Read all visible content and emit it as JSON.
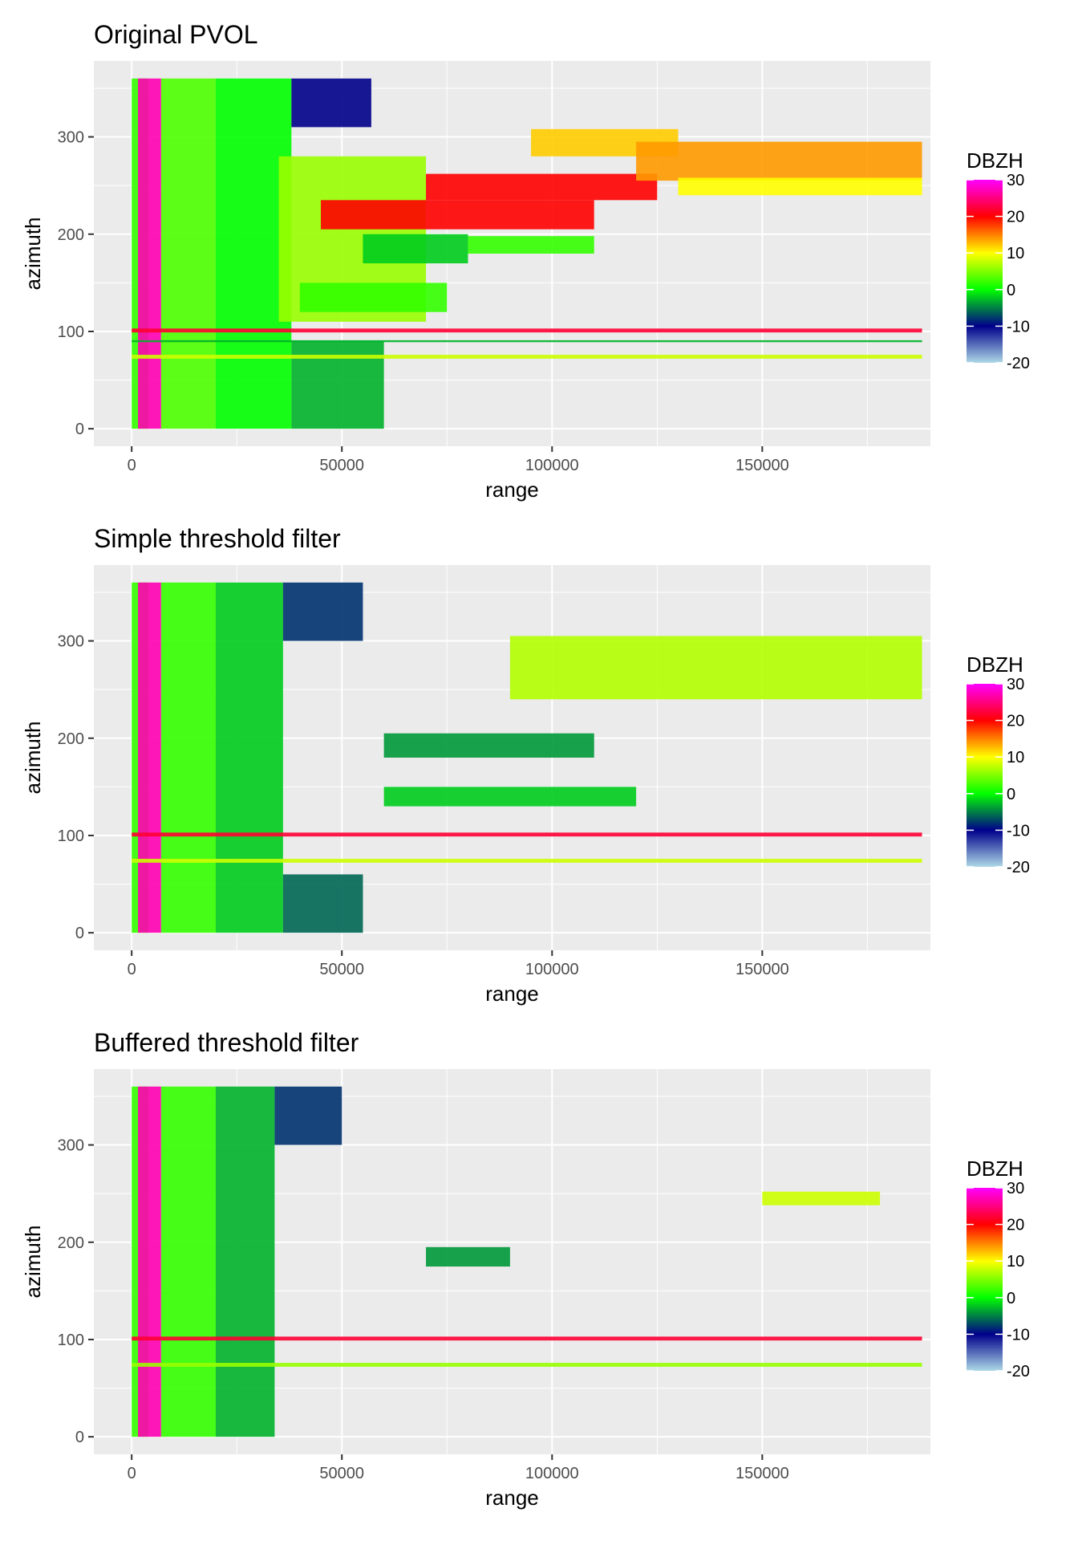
{
  "colors": {
    "panel_bg": "#ebebeb",
    "grid": "#ffffff",
    "tick_text": "#4d4d4d",
    "colorbar_stops": [
      {
        "value": -20,
        "color": "#add8e6"
      },
      {
        "value": -10,
        "color": "#00008b"
      },
      {
        "value": 0,
        "color": "#00ff00"
      },
      {
        "value": 10,
        "color": "#ffff00"
      },
      {
        "value": 20,
        "color": "#ff0000"
      },
      {
        "value": 30,
        "color": "#ff00ff"
      }
    ]
  },
  "chart_data": [
    {
      "type": "heatmap",
      "title": "Original PVOL",
      "xlabel": "range",
      "ylabel": "azimuth",
      "xlim": [
        -9000,
        190000
      ],
      "ylim": [
        -18,
        378
      ],
      "x_ticks": [
        0,
        50000,
        100000,
        150000
      ],
      "y_ticks": [
        0,
        100,
        200,
        300
      ],
      "legend": {
        "title": "DBZH",
        "position": "right",
        "ticks": [
          30,
          20,
          10,
          0,
          -10,
          -20
        ]
      },
      "grid": true,
      "regions": [
        {
          "x": [
            0,
            4000
          ],
          "y": [
            0,
            360
          ],
          "dbzh": 2
        },
        {
          "x": [
            1500,
            7000
          ],
          "y": [
            0,
            360
          ],
          "dbzh": 27
        },
        {
          "x": [
            7000,
            20000
          ],
          "y": [
            0,
            360
          ],
          "dbzh": 3
        },
        {
          "x": [
            20000,
            38000
          ],
          "y": [
            0,
            360
          ],
          "dbzh": 0
        },
        {
          "x": [
            38000,
            57000
          ],
          "y": [
            310,
            360
          ],
          "dbzh": -10
        },
        {
          "x": [
            38000,
            60000
          ],
          "y": [
            0,
            90
          ],
          "dbzh": -3
        },
        {
          "x": [
            35000,
            70000
          ],
          "y": [
            110,
            280
          ],
          "dbzh": 6
        },
        {
          "x": [
            40000,
            75000
          ],
          "y": [
            120,
            150
          ],
          "dbzh": 2
        },
        {
          "x": [
            45000,
            110000
          ],
          "y": [
            205,
            235
          ],
          "dbzh": 20
        },
        {
          "x": [
            70000,
            125000
          ],
          "y": [
            235,
            262
          ],
          "dbzh": 20
        },
        {
          "x": [
            95000,
            130000
          ],
          "y": [
            280,
            308
          ],
          "dbzh": 12
        },
        {
          "x": [
            120000,
            188000
          ],
          "y": [
            255,
            295
          ],
          "dbzh": 14
        },
        {
          "x": [
            130000,
            188000
          ],
          "y": [
            240,
            258
          ],
          "dbzh": 10
        },
        {
          "x": [
            55000,
            80000
          ],
          "y": [
            170,
            200
          ],
          "dbzh": -2
        },
        {
          "x": [
            80000,
            110000
          ],
          "y": [
            180,
            198
          ],
          "dbzh": 2
        },
        {
          "x": [
            0,
            188000
          ],
          "y": [
            99,
            103
          ],
          "dbzh": 22
        },
        {
          "x": [
            0,
            188000
          ],
          "y": [
            72,
            76
          ],
          "dbzh": 8
        },
        {
          "x": [
            0,
            188000
          ],
          "y": [
            89,
            91
          ],
          "dbzh": -3
        }
      ]
    },
    {
      "type": "heatmap",
      "title": "Simple threshold filter",
      "xlabel": "range",
      "ylabel": "azimuth",
      "xlim": [
        -9000,
        190000
      ],
      "ylim": [
        -18,
        378
      ],
      "x_ticks": [
        0,
        50000,
        100000,
        150000
      ],
      "y_ticks": [
        0,
        100,
        200,
        300
      ],
      "legend": {
        "title": "DBZH",
        "position": "right",
        "ticks": [
          30,
          20,
          10,
          0,
          -10,
          -20
        ]
      },
      "grid": true,
      "regions": [
        {
          "x": [
            0,
            4000
          ],
          "y": [
            0,
            360
          ],
          "dbzh": 2
        },
        {
          "x": [
            1500,
            7000
          ],
          "y": [
            0,
            360
          ],
          "dbzh": 27
        },
        {
          "x": [
            7000,
            20000
          ],
          "y": [
            0,
            360
          ],
          "dbzh": 2
        },
        {
          "x": [
            20000,
            36000
          ],
          "y": [
            0,
            360
          ],
          "dbzh": -2
        },
        {
          "x": [
            36000,
            55000
          ],
          "y": [
            0,
            60
          ],
          "dbzh": -6
        },
        {
          "x": [
            36000,
            55000
          ],
          "y": [
            300,
            360
          ],
          "dbzh": -8
        },
        {
          "x": [
            60000,
            110000
          ],
          "y": [
            180,
            205
          ],
          "dbzh": -4
        },
        {
          "x": [
            90000,
            188000
          ],
          "y": [
            240,
            305
          ],
          "dbzh": 7
        },
        {
          "x": [
            60000,
            120000
          ],
          "y": [
            130,
            150
          ],
          "dbzh": -2
        },
        {
          "x": [
            0,
            188000
          ],
          "y": [
            99,
            103
          ],
          "dbzh": 22
        },
        {
          "x": [
            0,
            188000
          ],
          "y": [
            72,
            76
          ],
          "dbzh": 8
        }
      ]
    },
    {
      "type": "heatmap",
      "title": "Buffered threshold filter",
      "xlabel": "range",
      "ylabel": "azimuth",
      "xlim": [
        -9000,
        190000
      ],
      "ylim": [
        -18,
        378
      ],
      "x_ticks": [
        0,
        50000,
        100000,
        150000
      ],
      "y_ticks": [
        0,
        100,
        200,
        300
      ],
      "legend": {
        "title": "DBZH",
        "position": "right",
        "ticks": [
          30,
          20,
          10,
          0,
          -10,
          -20
        ]
      },
      "grid": true,
      "regions": [
        {
          "x": [
            0,
            4000
          ],
          "y": [
            0,
            360
          ],
          "dbzh": 2
        },
        {
          "x": [
            1500,
            7000
          ],
          "y": [
            0,
            360
          ],
          "dbzh": 27
        },
        {
          "x": [
            7000,
            20000
          ],
          "y": [
            0,
            360
          ],
          "dbzh": 2
        },
        {
          "x": [
            20000,
            34000
          ],
          "y": [
            0,
            360
          ],
          "dbzh": -3
        },
        {
          "x": [
            34000,
            50000
          ],
          "y": [
            300,
            360
          ],
          "dbzh": -8
        },
        {
          "x": [
            70000,
            90000
          ],
          "y": [
            175,
            195
          ],
          "dbzh": -4
        },
        {
          "x": [
            150000,
            178000
          ],
          "y": [
            238,
            252
          ],
          "dbzh": 8
        },
        {
          "x": [
            0,
            188000
          ],
          "y": [
            99,
            103
          ],
          "dbzh": 22
        },
        {
          "x": [
            0,
            188000
          ],
          "y": [
            72,
            76
          ],
          "dbzh": 6
        }
      ]
    }
  ]
}
